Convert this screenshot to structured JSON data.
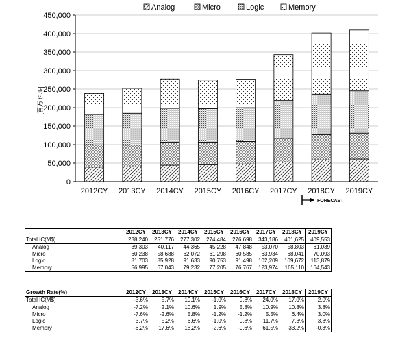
{
  "chart_data": {
    "type": "bar",
    "stacked": true,
    "ylabel": "[百万ドル]",
    "ylim": [
      0,
      450000
    ],
    "yticks": [
      "0",
      "50,000",
      "100,000",
      "150,000",
      "200,000",
      "250,000",
      "300,000",
      "350,000",
      "400,000",
      "450,000"
    ],
    "categories": [
      "2012CY",
      "2013CY",
      "2014CY",
      "2015CY",
      "2016CY",
      "2017CY",
      "2018CY",
      "2019CY"
    ],
    "series": [
      {
        "name": "Analog",
        "pattern": "diagonal-hatch",
        "values": [
          39303,
          40117,
          44365,
          45228,
          47848,
          53070,
          58803,
          61039
        ]
      },
      {
        "name": "Micro",
        "pattern": "crosshatch",
        "values": [
          60238,
          58688,
          62072,
          61298,
          60585,
          63934,
          68041,
          70093
        ]
      },
      {
        "name": "Logic",
        "pattern": "dense-dots",
        "values": [
          81703,
          85928,
          91633,
          90753,
          91498,
          102209,
          109672,
          113879
        ]
      },
      {
        "name": "Memory",
        "pattern": "sparse-dots",
        "values": [
          56995,
          67043,
          79232,
          77205,
          76767,
          123974,
          165110,
          164543
        ]
      }
    ],
    "legend_position": "top",
    "forecast_label": "FORECAST",
    "forecast_start_category": "2018CY"
  },
  "table_sales": {
    "years": [
      "2012CY",
      "2013CY",
      "2014CY",
      "2015CY",
      "2016CY",
      "2017CY",
      "2018CY",
      "2019CY"
    ],
    "rows": [
      {
        "label": "Total IC(M$)",
        "values": [
          "238,240",
          "251,776",
          "277,302",
          "274,484",
          "276,698",
          "343,186",
          "401,625",
          "409,553"
        ]
      },
      {
        "label": "Analog",
        "values": [
          "39,303",
          "40,117",
          "44,365",
          "45,228",
          "47,848",
          "53,070",
          "58,803",
          "61,039"
        ]
      },
      {
        "label": "Micro",
        "values": [
          "60,238",
          "58,688",
          "62,072",
          "61,298",
          "60,585",
          "63,934",
          "68,041",
          "70,093"
        ]
      },
      {
        "label": "Logic",
        "values": [
          "81,703",
          "85,928",
          "91,633",
          "90,753",
          "91,498",
          "102,209",
          "109,672",
          "113,879"
        ]
      },
      {
        "label": "Memory",
        "values": [
          "56,995",
          "67,043",
          "79,232",
          "77,205",
          "76,767",
          "123,974",
          "165,110",
          "164,543"
        ]
      }
    ]
  },
  "table_growth": {
    "title": "Growth Rate(%)",
    "years": [
      "2012CY",
      "2013CY",
      "2014CY",
      "2015CY",
      "2016CY",
      "2017CY",
      "2018CY",
      "2019CY"
    ],
    "rows": [
      {
        "label": "Total IC(M$)",
        "values": [
          "-3.6%",
          "5.7%",
          "10.1%",
          "-1.0%",
          "0.8%",
          "24.0%",
          "17.0%",
          "2.0%"
        ]
      },
      {
        "label": "Analog",
        "values": [
          "-7.2%",
          "2.1%",
          "10.6%",
          "1.9%",
          "5.8%",
          "10.9%",
          "10.8%",
          "3.8%"
        ]
      },
      {
        "label": "Micro",
        "values": [
          "-7.6%",
          "-2.6%",
          "5.8%",
          "-1.2%",
          "-1.2%",
          "5.5%",
          "6.4%",
          "3.0%"
        ]
      },
      {
        "label": "Logic",
        "values": [
          "3.7%",
          "5.2%",
          "6.6%",
          "-1.0%",
          "0.8%",
          "11.7%",
          "7.3%",
          "3.8%"
        ]
      },
      {
        "label": "Memory",
        "values": [
          "-6.2%",
          "17.6%",
          "18.2%",
          "-2.6%",
          "-0.6%",
          "61.5%",
          "33.2%",
          "-0.3%"
        ]
      }
    ]
  }
}
